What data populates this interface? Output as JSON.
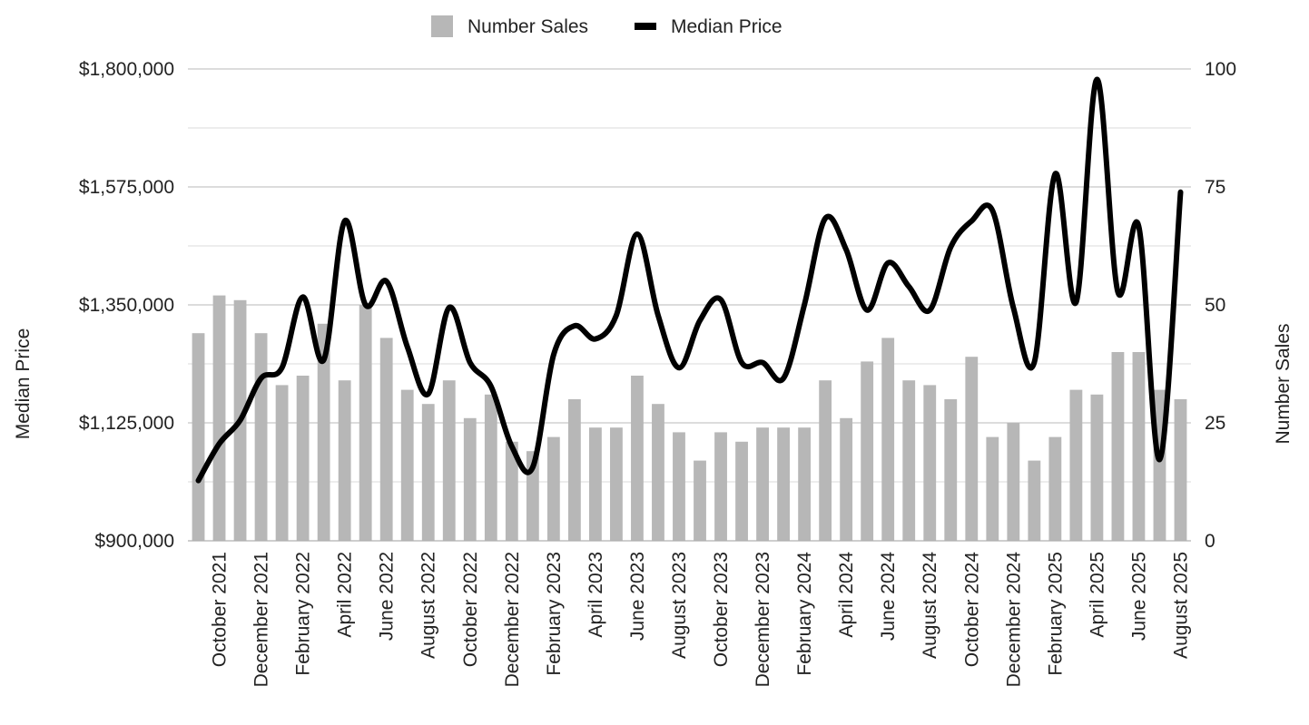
{
  "chart_data": {
    "type": "bar",
    "legend": [
      {
        "name": "Number Sales",
        "marker": "bar",
        "color": "#b7b7b7"
      },
      {
        "name": "Median Price",
        "marker": "line",
        "color": "#000000"
      }
    ],
    "legend_position": "top-center",
    "grid": true,
    "left_axis": {
      "label": "Median Price",
      "ticks": [
        "$900,000",
        "$1,125,000",
        "$1,350,000",
        "$1,575,000",
        "$1,800,000"
      ],
      "range": [
        900000,
        1800000
      ]
    },
    "right_axis": {
      "label": "Number Sales",
      "ticks": [
        "0",
        "25",
        "50",
        "75",
        "100"
      ],
      "range": [
        0,
        100
      ]
    },
    "x_tick_labels": [
      "October 2021",
      "December 2021",
      "February 2022",
      "April 2022",
      "June  2022",
      "August 2022",
      "October 2022",
      "December 2022",
      "February 2023",
      "April 2023",
      "June 2023",
      "August 2023",
      "October 2023",
      "December 2023",
      "February 2024",
      "April 2024",
      "June 2024",
      "August 2024",
      "October 2024",
      "December 2024",
      "February 2025",
      "April 2025",
      "June 2025",
      "August  2025"
    ],
    "categories": [
      "Sep 2021",
      "Oct 2021",
      "Nov 2021",
      "Dec 2021",
      "Jan 2022",
      "Feb 2022",
      "Mar 2022",
      "Apr 2022",
      "May 2022",
      "Jun 2022",
      "Jul 2022",
      "Aug 2022",
      "Sep 2022",
      "Oct 2022",
      "Nov 2022",
      "Dec 2022",
      "Jan 2023",
      "Feb 2023",
      "Mar 2023",
      "Apr 2023",
      "May 2023",
      "Jun 2023",
      "Jul 2023",
      "Aug 2023",
      "Sep 2023",
      "Oct 2023",
      "Nov 2023",
      "Dec 2023",
      "Jan 2024",
      "Feb 2024",
      "Mar 2024",
      "Apr 2024",
      "May 2024",
      "Jun 2024",
      "Jul 2024",
      "Aug 2024",
      "Sep 2024",
      "Oct 2024",
      "Nov 2024",
      "Dec 2024",
      "Jan 2025",
      "Feb 2025",
      "Mar 2025",
      "Apr 2025",
      "May 2025",
      "Jun 2025",
      "Jul 2025",
      "Aug 2025"
    ],
    "series": [
      {
        "name": "Number Sales",
        "type": "bar",
        "axis": "right",
        "values": [
          44,
          52,
          51,
          44,
          33,
          35,
          46,
          34,
          50,
          43,
          32,
          29,
          34,
          26,
          31,
          21,
          19,
          22,
          30,
          24,
          24,
          35,
          29,
          23,
          17,
          23,
          21,
          24,
          24,
          24,
          34,
          26,
          38,
          43,
          34,
          33,
          30,
          39,
          22,
          25,
          17,
          22,
          32,
          31,
          40,
          40,
          32,
          30
        ]
      },
      {
        "name": "Median Price",
        "type": "line",
        "axis": "left",
        "values": [
          1015000,
          1085000,
          1130000,
          1210000,
          1230000,
          1365000,
          1245000,
          1510000,
          1350000,
          1395000,
          1270000,
          1180000,
          1345000,
          1240000,
          1195000,
          1080000,
          1040000,
          1255000,
          1310000,
          1285000,
          1330000,
          1485000,
          1330000,
          1230000,
          1320000,
          1360000,
          1240000,
          1240000,
          1210000,
          1350000,
          1515000,
          1455000,
          1340000,
          1430000,
          1385000,
          1340000,
          1460000,
          1510000,
          1530000,
          1345000,
          1240000,
          1600000,
          1355000,
          1780000,
          1375000,
          1500000,
          1055000,
          1565000
        ]
      }
    ]
  }
}
